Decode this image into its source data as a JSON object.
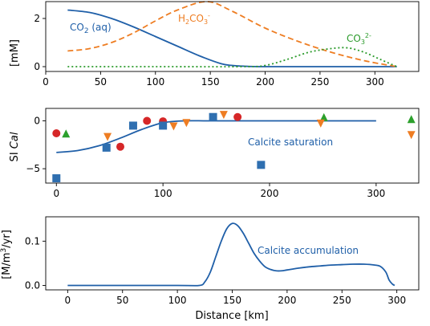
{
  "colors": {
    "blue": "#1f5fa8",
    "orange": "#ee7d22",
    "green": "#2a9a2a",
    "red": "#d62728",
    "triangle_green": "#2ca02c",
    "square_blue": "#2f6fb0"
  },
  "chart_data": [
    {
      "type": "line",
      "ylabel": "[mM]",
      "xlim": [
        0,
        340
      ],
      "ylim": [
        -0.2,
        2.7
      ],
      "xticks": [
        "0",
        "50",
        "100",
        "150",
        "200",
        "250",
        "300"
      ],
      "yticks": [
        "0",
        "2"
      ],
      "series": [
        {
          "name": "CO2 (aq)",
          "style": "solid",
          "color": "#1f5fa8",
          "x": [
            20,
            40,
            60,
            80,
            100,
            120,
            140,
            160,
            170,
            180,
            200,
            250,
            300,
            320
          ],
          "y": [
            2.35,
            2.25,
            2.0,
            1.65,
            1.25,
            0.85,
            0.45,
            0.12,
            0.05,
            0.02,
            0.0,
            0.0,
            0.0,
            0.0
          ]
        },
        {
          "name": "H2CO3-",
          "style": "dashed",
          "color": "#ee7d22",
          "x": [
            20,
            40,
            60,
            80,
            100,
            120,
            147,
            170,
            200,
            230,
            260,
            290,
            320
          ],
          "y": [
            0.65,
            0.75,
            1.0,
            1.4,
            1.9,
            2.35,
            2.7,
            2.3,
            1.6,
            1.05,
            0.6,
            0.25,
            0.0
          ]
        },
        {
          "name": "CO3 2-",
          "style": "dotted",
          "color": "#2a9a2a",
          "x": [
            20,
            100,
            180,
            200,
            220,
            240,
            260,
            275,
            290,
            305,
            320
          ],
          "y": [
            0.0,
            0.0,
            0.0,
            0.05,
            0.3,
            0.6,
            0.75,
            0.78,
            0.6,
            0.3,
            0.0
          ]
        }
      ],
      "annotations": [
        {
          "label": "CO",
          "sub": "2",
          "rest": " (aq)",
          "color": "#1f5fa8",
          "x": 35,
          "y": 2.0
        },
        {
          "label": "H",
          "sub": "2",
          "mid": "CO",
          "sub2": "3",
          "sup": "-",
          "color": "#ee7d22",
          "x": 120,
          "y": 2.4
        },
        {
          "label": "CO",
          "sub": "3",
          "sup": "2-",
          "color": "#2a9a2a",
          "x": 278,
          "y": 1.3
        }
      ]
    },
    {
      "type": "scatter",
      "ylabel": "SI Cal",
      "xlim": [
        -10,
        340
      ],
      "ylim": [
        -6.5,
        1.3
      ],
      "xticks": [
        "0",
        "100",
        "200",
        "300"
      ],
      "yticks": [
        "0",
        "-5"
      ],
      "series": [
        {
          "name": "saturation line",
          "type": "line",
          "color": "#1f5fa8",
          "x": [
            0,
            20,
            40,
            60,
            80,
            100,
            120,
            140,
            160,
            200,
            250,
            300
          ],
          "y": [
            -3.3,
            -3.1,
            -2.6,
            -1.8,
            -0.9,
            -0.2,
            0.0,
            0.0,
            0.0,
            0.0,
            0.0,
            0.0
          ]
        },
        {
          "name": "circles",
          "marker": "circle",
          "color": "#d62728",
          "x": [
            0,
            60,
            85,
            100,
            170
          ],
          "y": [
            -1.3,
            -2.7,
            0.0,
            -0.05,
            0.4
          ]
        },
        {
          "name": "squares",
          "marker": "square",
          "color": "#2f6fb0",
          "x": [
            0,
            47,
            72,
            100,
            147,
            192
          ],
          "y": [
            -6.0,
            -2.8,
            -0.5,
            -0.5,
            0.4,
            -4.6
          ]
        },
        {
          "name": "triangles up",
          "marker": "triangle-up",
          "color": "#2ca02c",
          "x": [
            9,
            251,
            333
          ],
          "y": [
            -1.4,
            0.3,
            0.1
          ]
        },
        {
          "name": "triangles down",
          "marker": "triangle-down",
          "color": "#ee7d22",
          "x": [
            48,
            110,
            122,
            157,
            248,
            333
          ],
          "y": [
            -1.6,
            -0.5,
            -0.15,
            0.7,
            -0.2,
            -1.4
          ]
        }
      ],
      "annotations": [
        {
          "label": "Calcite saturation",
          "color": "#1f5fa8",
          "x": 178,
          "y": -1.9
        }
      ]
    },
    {
      "type": "line",
      "xlabel": "Distance [km]",
      "ylabel": "[M/m³/yr]",
      "xlim": [
        -20,
        320
      ],
      "ylim": [
        -0.01,
        0.155
      ],
      "xticks": [
        "0",
        "50",
        "100",
        "150",
        "200",
        "250",
        "300"
      ],
      "yticks": [
        "0.0",
        "0.1"
      ],
      "series": [
        {
          "name": "Calcite accumulation",
          "color": "#1f5fa8",
          "x": [
            0,
            100,
            120,
            125,
            130,
            135,
            140,
            145,
            150,
            155,
            160,
            165,
            170,
            175,
            180,
            185,
            190,
            195,
            200,
            210,
            220,
            230,
            240,
            250,
            260,
            270,
            280,
            285,
            290,
            293,
            296,
            298
          ],
          "y": [
            0.0,
            0.0,
            0.0,
            0.008,
            0.03,
            0.065,
            0.1,
            0.128,
            0.14,
            0.135,
            0.118,
            0.095,
            0.072,
            0.055,
            0.042,
            0.036,
            0.033,
            0.033,
            0.035,
            0.039,
            0.042,
            0.044,
            0.046,
            0.047,
            0.048,
            0.048,
            0.046,
            0.043,
            0.03,
            0.012,
            0.003,
            0.0
          ]
        }
      ],
      "annotations": [
        {
          "label": "Calcite accumulation",
          "color": "#1f5fa8",
          "x": 190,
          "y": 0.075
        }
      ]
    }
  ]
}
